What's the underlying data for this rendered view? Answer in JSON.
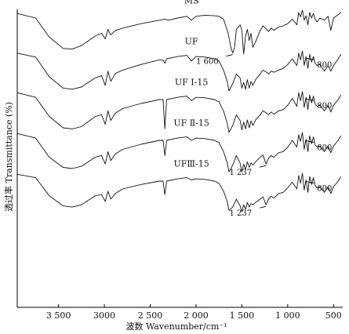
{
  "chart_data": {
    "type": "line",
    "title": "",
    "xlabel": "波数 Wavenumber/cm⁻¹",
    "ylabel": "透过率 Transmittance (%)",
    "xlim": [
      3950,
      400
    ],
    "x_reversed": true,
    "x_ticks": [
      3500,
      3000,
      2500,
      2000,
      1500,
      1000,
      500
    ],
    "x_tick_labels": [
      "3 500",
      "3000",
      "2 500",
      "2 000",
      "1 500",
      "1 000",
      "500"
    ],
    "y_ticks_shown": false,
    "legend": "none",
    "series": [
      {
        "name": "MS",
        "offset": 4,
        "x": [
          3950,
          3750,
          3600,
          3450,
          3350,
          3250,
          3100,
          3030,
          2990,
          2960,
          2930,
          2880,
          2800,
          2600,
          2400,
          2340,
          2300,
          2200,
          2100,
          2050,
          2000,
          1900,
          1800,
          1750,
          1700,
          1650,
          1620,
          1600,
          1580,
          1560,
          1520,
          1500,
          1480,
          1460,
          1440,
          1420,
          1400,
          1380,
          1350,
          1300,
          1270,
          1230,
          1210,
          1180,
          1150,
          1100,
          1050,
          1000,
          950,
          900,
          880,
          860,
          840,
          820,
          800,
          780,
          760,
          740,
          720,
          700,
          680,
          650,
          600,
          560,
          530,
          500,
          450,
          420
        ],
        "y": [
          0.9,
          0.82,
          0.48,
          0.28,
          0.27,
          0.33,
          0.5,
          0.55,
          0.45,
          0.62,
          0.52,
          0.6,
          0.64,
          0.72,
          0.78,
          0.8,
          0.78,
          0.82,
          0.85,
          0.78,
          0.85,
          0.87,
          0.86,
          0.85,
          0.8,
          0.55,
          0.3,
          0.2,
          0.3,
          0.62,
          0.7,
          0.6,
          0.18,
          0.5,
          0.62,
          0.42,
          0.55,
          0.3,
          0.4,
          0.6,
          0.68,
          0.62,
          0.58,
          0.64,
          0.6,
          0.66,
          0.68,
          0.72,
          0.8,
          0.7,
          0.92,
          0.84,
          0.96,
          0.78,
          0.86,
          0.7,
          0.92,
          0.82,
          0.9,
          0.8,
          0.75,
          0.82,
          0.78,
          0.85,
          0.6,
          0.82,
          0.88,
          0.92
        ]
      },
      {
        "name": "UF",
        "offset": 3,
        "x": [
          3950,
          3750,
          3600,
          3450,
          3350,
          3250,
          3100,
          3030,
          2990,
          2960,
          2930,
          2880,
          2800,
          2600,
          2400,
          2360,
          2340,
          2320,
          2200,
          2100,
          2050,
          2000,
          1900,
          1800,
          1750,
          1700,
          1660,
          1640,
          1600,
          1560,
          1520,
          1500,
          1480,
          1460,
          1440,
          1420,
          1400,
          1380,
          1350,
          1300,
          1270,
          1230,
          1210,
          1180,
          1150,
          1100,
          1050,
          1000,
          950,
          900,
          880,
          860,
          840,
          820,
          800,
          780,
          760,
          740,
          720,
          700,
          680,
          650,
          600,
          560,
          530,
          500,
          450,
          420
        ],
        "y": [
          0.92,
          0.85,
          0.5,
          0.3,
          0.28,
          0.32,
          0.48,
          0.52,
          0.35,
          0.6,
          0.42,
          0.56,
          0.62,
          0.72,
          0.8,
          0.8,
          0.74,
          0.82,
          0.86,
          0.88,
          0.78,
          0.86,
          0.85,
          0.82,
          0.78,
          0.62,
          0.42,
          0.25,
          0.38,
          0.55,
          0.48,
          0.3,
          0.4,
          0.28,
          0.45,
          0.3,
          0.42,
          0.35,
          0.45,
          0.55,
          0.62,
          0.58,
          0.55,
          0.6,
          0.58,
          0.62,
          0.65,
          0.72,
          0.82,
          0.7,
          0.92,
          0.8,
          0.96,
          0.7,
          0.86,
          0.65,
          0.9,
          0.76,
          0.86,
          0.74,
          0.7,
          0.72,
          0.6,
          0.7,
          0.6,
          0.7,
          0.82,
          0.9
        ]
      },
      {
        "name": "UF Ⅰ-15",
        "offset": 2,
        "x": [
          3950,
          3750,
          3600,
          3450,
          3350,
          3250,
          3100,
          3030,
          2990,
          2960,
          2930,
          2880,
          2800,
          2600,
          2400,
          2360,
          2340,
          2320,
          2200,
          2100,
          2050,
          2000,
          1900,
          1800,
          1750,
          1700,
          1660,
          1640,
          1600,
          1560,
          1520,
          1500,
          1480,
          1460,
          1440,
          1420,
          1400,
          1380,
          1350,
          1300,
          1270,
          1230,
          1210,
          1180,
          1150,
          1100,
          1050,
          1000,
          950,
          900,
          880,
          860,
          840,
          820,
          800,
          780,
          760,
          740,
          720,
          700,
          680,
          650,
          600,
          560,
          530,
          500,
          450,
          420
        ],
        "y": [
          0.94,
          0.86,
          0.52,
          0.32,
          0.3,
          0.34,
          0.52,
          0.55,
          0.38,
          0.62,
          0.45,
          0.58,
          0.66,
          0.75,
          0.82,
          0.82,
          0.3,
          0.82,
          0.86,
          0.88,
          0.8,
          0.86,
          0.85,
          0.82,
          0.78,
          0.62,
          0.4,
          0.24,
          0.36,
          0.55,
          0.45,
          0.28,
          0.42,
          0.3,
          0.46,
          0.32,
          0.44,
          0.36,
          0.46,
          0.55,
          0.62,
          0.58,
          0.55,
          0.6,
          0.56,
          0.62,
          0.64,
          0.72,
          0.84,
          0.7,
          0.94,
          0.8,
          0.96,
          0.68,
          0.86,
          0.64,
          0.9,
          0.76,
          0.88,
          0.74,
          0.7,
          0.72,
          0.62,
          0.72,
          0.6,
          0.72,
          0.82,
          0.9
        ]
      },
      {
        "name": "UF Ⅱ-15",
        "offset": 1,
        "x": [
          3950,
          3750,
          3600,
          3450,
          3350,
          3250,
          3100,
          3030,
          2990,
          2960,
          2930,
          2880,
          2800,
          2600,
          2400,
          2360,
          2340,
          2320,
          2200,
          2100,
          2050,
          2000,
          1900,
          1800,
          1750,
          1700,
          1660,
          1640,
          1600,
          1560,
          1520,
          1500,
          1480,
          1460,
          1440,
          1420,
          1400,
          1380,
          1350,
          1300,
          1270,
          1237,
          1210,
          1180,
          1150,
          1100,
          1050,
          1000,
          950,
          900,
          880,
          860,
          840,
          820,
          800,
          780,
          760,
          740,
          720,
          700,
          680,
          650,
          600,
          560,
          530,
          500,
          450,
          420
        ],
        "y": [
          0.94,
          0.86,
          0.52,
          0.34,
          0.32,
          0.36,
          0.52,
          0.55,
          0.4,
          0.62,
          0.46,
          0.58,
          0.66,
          0.75,
          0.82,
          0.82,
          0.55,
          0.82,
          0.86,
          0.88,
          0.82,
          0.86,
          0.85,
          0.82,
          0.78,
          0.62,
          0.42,
          0.26,
          0.38,
          0.55,
          0.42,
          0.26,
          0.4,
          0.3,
          0.44,
          0.34,
          0.42,
          0.38,
          0.44,
          0.52,
          0.56,
          0.4,
          0.5,
          0.55,
          0.52,
          0.6,
          0.62,
          0.7,
          0.82,
          0.7,
          0.92,
          0.8,
          0.96,
          0.66,
          0.84,
          0.62,
          0.9,
          0.76,
          0.88,
          0.74,
          0.7,
          0.72,
          0.62,
          0.72,
          0.6,
          0.72,
          0.82,
          0.9
        ]
      },
      {
        "name": "UFⅢ-15",
        "offset": 0,
        "x": [
          3950,
          3750,
          3600,
          3450,
          3350,
          3250,
          3100,
          3030,
          2990,
          2960,
          2930,
          2880,
          2800,
          2600,
          2400,
          2360,
          2340,
          2320,
          2200,
          2100,
          2050,
          2000,
          1900,
          1800,
          1750,
          1700,
          1660,
          1640,
          1600,
          1560,
          1520,
          1500,
          1480,
          1460,
          1440,
          1420,
          1400,
          1380,
          1350,
          1300,
          1270,
          1237,
          1210,
          1180,
          1150,
          1100,
          1050,
          1000,
          950,
          900,
          880,
          860,
          840,
          820,
          800,
          780,
          760,
          740,
          720,
          700,
          680,
          650,
          600,
          560,
          530,
          500,
          450,
          420
        ],
        "y": [
          0.94,
          0.88,
          0.56,
          0.38,
          0.36,
          0.4,
          0.56,
          0.58,
          0.46,
          0.64,
          0.5,
          0.6,
          0.68,
          0.76,
          0.82,
          0.82,
          0.58,
          0.82,
          0.86,
          0.88,
          0.84,
          0.86,
          0.85,
          0.82,
          0.78,
          0.64,
          0.46,
          0.3,
          0.36,
          0.5,
          0.38,
          0.28,
          0.4,
          0.32,
          0.44,
          0.36,
          0.42,
          0.4,
          0.44,
          0.5,
          0.54,
          0.4,
          0.5,
          0.55,
          0.52,
          0.6,
          0.62,
          0.7,
          0.8,
          0.68,
          0.92,
          0.78,
          0.96,
          0.66,
          0.84,
          0.62,
          0.9,
          0.76,
          0.88,
          0.74,
          0.7,
          0.72,
          0.62,
          0.72,
          0.6,
          0.72,
          0.82,
          0.9
        ]
      }
    ],
    "annotations": [
      {
        "text": "1 600",
        "series": "MS",
        "x": 1600
      },
      {
        "text": "800",
        "series": "UF",
        "x": 800
      },
      {
        "text": "800",
        "series": "UF Ⅰ-15",
        "x": 800
      },
      {
        "text": "1 237",
        "series": "UF Ⅱ-15",
        "x": 1237
      },
      {
        "text": "800",
        "series": "UF Ⅱ-15",
        "x": 800
      },
      {
        "text": "1 237",
        "series": "UFⅢ-15",
        "x": 1237
      },
      {
        "text": "800",
        "series": "UFⅢ-15",
        "x": 800
      }
    ]
  }
}
